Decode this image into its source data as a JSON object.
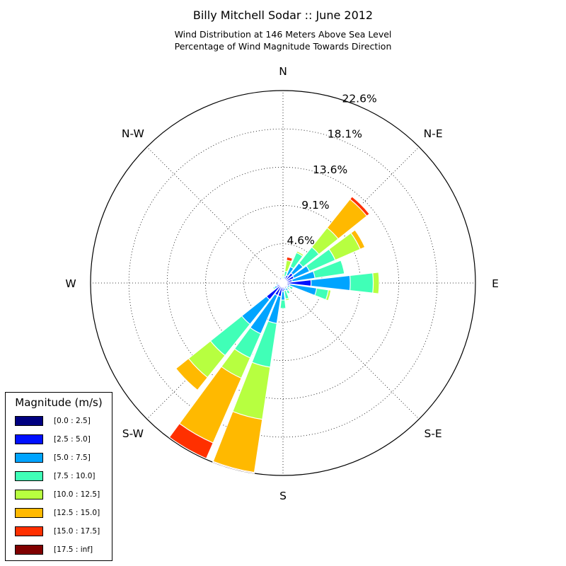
{
  "title": "Billy Mitchell Sodar :: June 2012",
  "subtitle_1": "Wind Distribution at 146 Meters Above Sea Level",
  "subtitle_2": "Percentage of Wind Magnitude Towards Direction",
  "legend": {
    "title": "Magnitude (m/s)",
    "items": [
      {
        "label": "[0.0 : 2.5]",
        "color": "#000080"
      },
      {
        "label": "[2.5 : 5.0]",
        "color": "#0010ff"
      },
      {
        "label": "[5.0 : 7.5]",
        "color": "#00a4ff"
      },
      {
        "label": "[7.5 : 10.0]",
        "color": "#40ffb7"
      },
      {
        "label": "[10.0 : 12.5]",
        "color": "#b7ff40"
      },
      {
        "label": "[12.5 : 15.0]",
        "color": "#ffb900"
      },
      {
        "label": "[15.0 : 17.5]",
        "color": "#ff3000"
      },
      {
        "label": "[17.5 : inf]",
        "color": "#800000"
      }
    ]
  },
  "chart_data": {
    "type": "windrose",
    "title": "Billy Mitchell Sodar :: June 2012",
    "radial_max": 22.6,
    "radial_ticks": [
      4.6,
      9.1,
      13.6,
      18.1,
      22.6
    ],
    "radial_tick_labels": [
      "4.6%",
      "9.1%",
      "13.6%",
      "18.1%",
      "22.6%"
    ],
    "direction_labels": [
      {
        "label": "N",
        "angle": 0
      },
      {
        "label": "N-E",
        "angle": 45
      },
      {
        "label": "E",
        "angle": 90
      },
      {
        "label": "S-E",
        "angle": 135
      },
      {
        "label": "S",
        "angle": 180
      },
      {
        "label": "S-W",
        "angle": 225
      },
      {
        "label": "W",
        "angle": 270
      },
      {
        "label": "N-W",
        "angle": 315
      }
    ],
    "bin_colors": [
      "#000080",
      "#0010ff",
      "#00a4ff",
      "#40ffb7",
      "#b7ff40",
      "#ffb900",
      "#ff3000",
      "#800000"
    ],
    "sectors": [
      {
        "direction": 0,
        "cumulative": [
          0.2,
          0.4,
          0.6,
          0.8,
          1.0,
          1.0,
          1.0,
          1.0
        ]
      },
      {
        "direction": 15,
        "cumulative": [
          0.3,
          0.5,
          0.8,
          1.4,
          2.7,
          2.7,
          3.1,
          3.1
        ]
      },
      {
        "direction": 30,
        "cumulative": [
          0.4,
          1.0,
          2.1,
          3.9,
          4.1,
          4.1,
          4.1,
          4.1
        ]
      },
      {
        "direction": 45,
        "cumulative": [
          0.4,
          1.5,
          3.0,
          5.4,
          8.3,
          12.6,
          13.0,
          13.0
        ]
      },
      {
        "direction": 60,
        "cumulative": [
          0.4,
          1.4,
          3.4,
          6.7,
          9.9,
          10.5,
          10.5,
          10.5
        ]
      },
      {
        "direction": 75,
        "cumulative": [
          0.4,
          1.1,
          3.8,
          7.3,
          7.3,
          7.3,
          7.3,
          7.3
        ]
      },
      {
        "direction": 90,
        "cumulative": [
          0.4,
          3.3,
          7.9,
          10.6,
          11.3,
          11.3,
          11.3,
          11.3
        ]
      },
      {
        "direction": 105,
        "cumulative": [
          0.3,
          0.8,
          4.0,
          5.4,
          5.7,
          5.7,
          5.7,
          5.7
        ]
      },
      {
        "direction": 120,
        "cumulative": [
          0.3,
          0.6,
          0.9,
          1.3,
          1.3,
          1.3,
          1.3,
          1.3
        ]
      },
      {
        "direction": 135,
        "cumulative": [
          0.2,
          0.5,
          0.7,
          1.0,
          1.0,
          1.0,
          1.0,
          1.0
        ]
      },
      {
        "direction": 150,
        "cumulative": [
          0.3,
          0.7,
          1.0,
          1.4,
          1.4,
          1.4,
          1.4,
          1.4
        ]
      },
      {
        "direction": 165,
        "cumulative": [
          0.3,
          0.6,
          0.9,
          1.9,
          2.1,
          2.1,
          2.1,
          2.1
        ]
      },
      {
        "direction": 180,
        "cumulative": [
          0.3,
          1.0,
          2.0,
          3.0,
          3.0,
          3.0,
          3.0,
          3.0
        ]
      },
      {
        "direction": 195,
        "cumulative": [
          0.3,
          1.6,
          4.8,
          10.0,
          16.2,
          22.5,
          22.6,
          22.6
        ]
      },
      {
        "direction": 210,
        "cumulative": [
          0.4,
          1.6,
          6.5,
          9.6,
          12.2,
          20.5,
          22.5,
          22.5
        ]
      },
      {
        "direction": 225,
        "cumulative": [
          0.4,
          2.5,
          6.2,
          10.9,
          14.2,
          16.1,
          16.1,
          16.1
        ]
      },
      {
        "direction": 240,
        "cumulative": [
          0.3,
          0.8,
          1.1,
          1.3,
          1.3,
          1.3,
          1.3,
          1.3
        ]
      },
      {
        "direction": 255,
        "cumulative": [
          0.3,
          0.6,
          0.8,
          0.8,
          0.8,
          0.8,
          0.8,
          0.8
        ]
      },
      {
        "direction": 270,
        "cumulative": [
          0.2,
          0.5,
          0.6,
          0.6,
          0.6,
          0.6,
          0.6,
          0.6
        ]
      },
      {
        "direction": 285,
        "cumulative": [
          0.2,
          0.4,
          0.5,
          0.5,
          0.5,
          0.5,
          0.5,
          0.5
        ]
      },
      {
        "direction": 300,
        "cumulative": [
          0.2,
          0.4,
          0.5,
          0.5,
          0.5,
          0.5,
          0.5,
          0.5
        ]
      },
      {
        "direction": 315,
        "cumulative": [
          0.3,
          0.6,
          0.7,
          0.7,
          0.7,
          0.7,
          0.7,
          0.7
        ]
      },
      {
        "direction": 330,
        "cumulative": [
          0.3,
          0.7,
          0.8,
          0.8,
          0.8,
          0.8,
          0.8,
          0.8
        ]
      },
      {
        "direction": 345,
        "cumulative": [
          0.2,
          0.4,
          0.5,
          0.5,
          0.7,
          0.7,
          0.7,
          0.7
        ]
      }
    ]
  }
}
